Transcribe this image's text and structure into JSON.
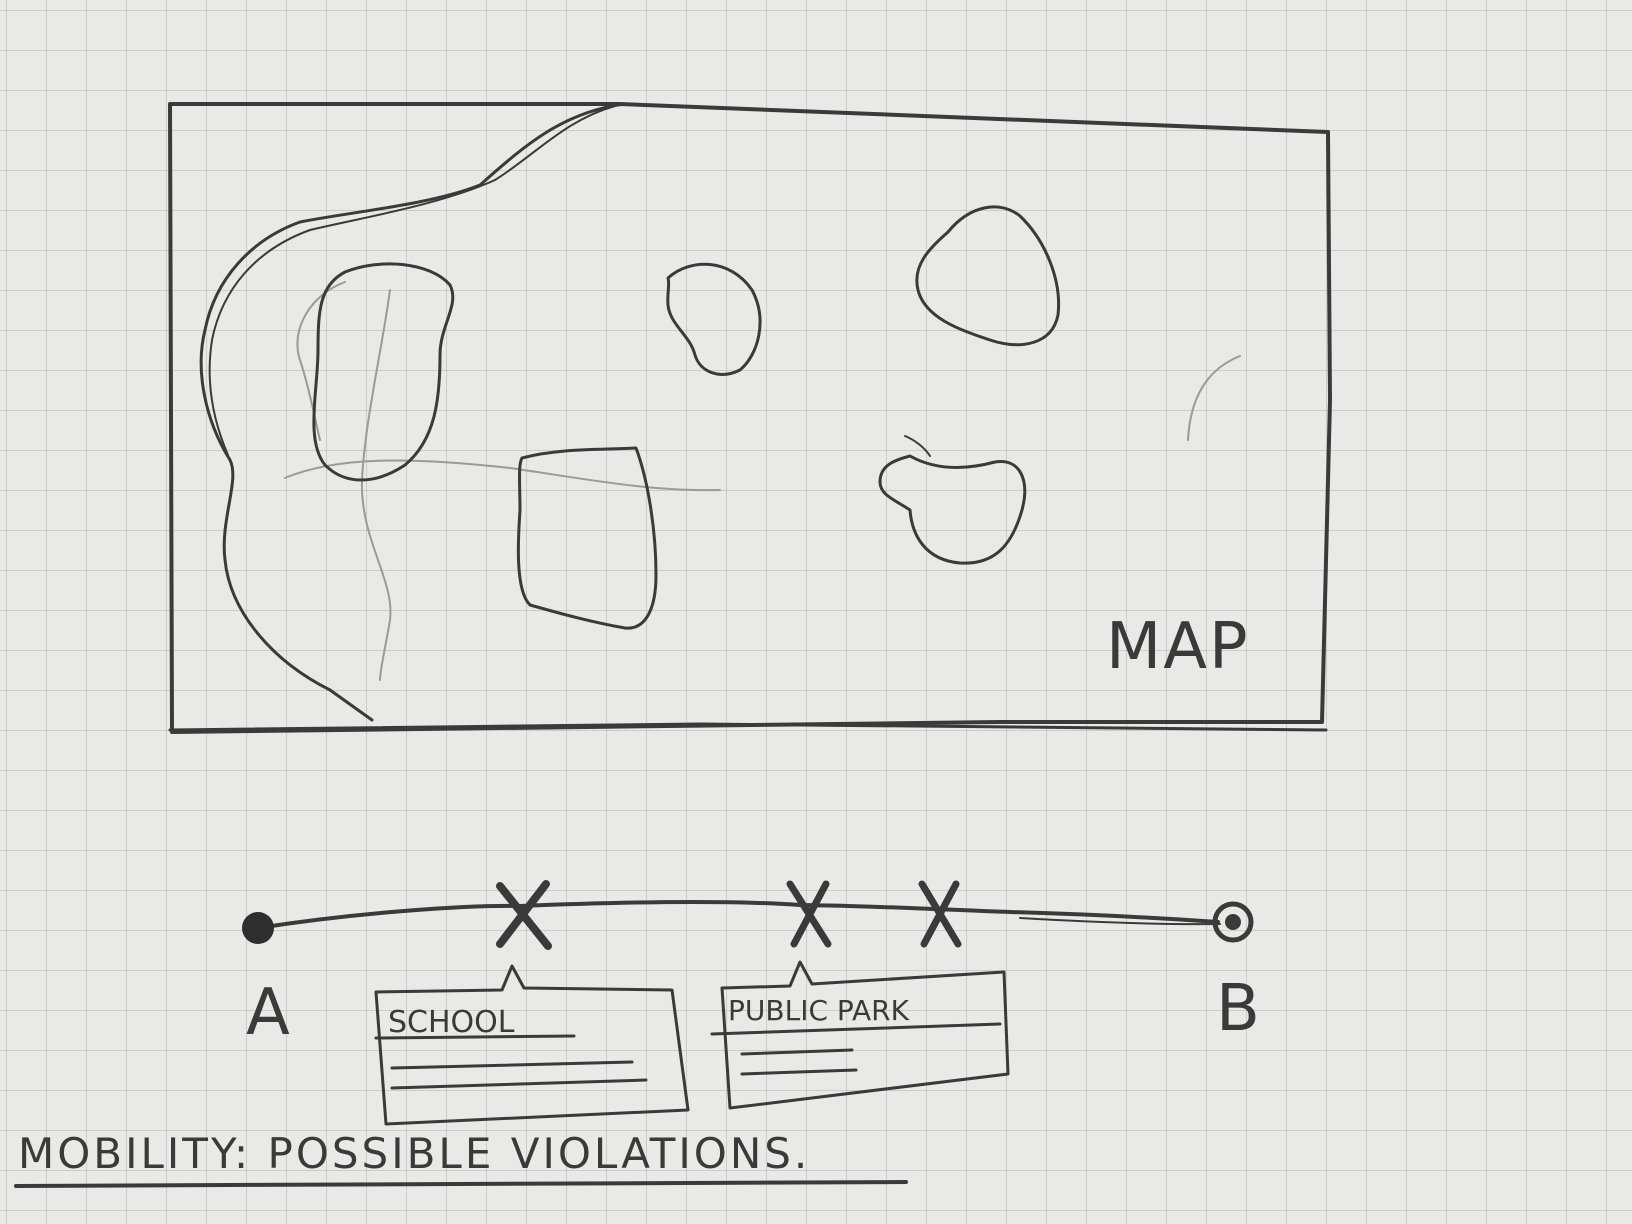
{
  "map": {
    "label": "MAP"
  },
  "route": {
    "start_label": "A",
    "end_label": "B",
    "callouts": [
      {
        "title": "SCHOOL"
      },
      {
        "title": "PUBLIC PARK"
      }
    ]
  },
  "page": {
    "title": "MOBILITY: POSSIBLE VIOLATIONS."
  },
  "colors": {
    "pencil": "#3a3a3a",
    "paper": "#e9e9e7",
    "grid": "#969696"
  }
}
